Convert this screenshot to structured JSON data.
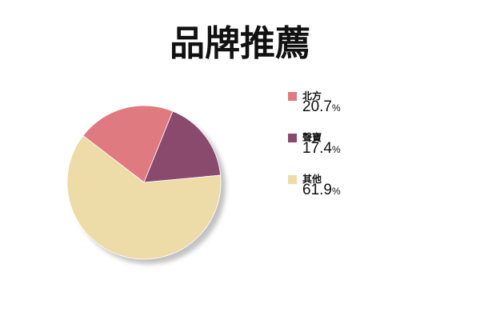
{
  "chart_data": {
    "type": "pie",
    "title": "品牌推薦",
    "slices": [
      {
        "label": "北方",
        "value": 20.7,
        "display": "20.7",
        "color": "#df7a80"
      },
      {
        "label": "聲寶",
        "value": 17.4,
        "display": "17.4",
        "color": "#8a4a6e"
      },
      {
        "label": "其他",
        "value": 61.9,
        "display": "61.9",
        "color": "#eddca8"
      }
    ],
    "unit": "%",
    "legend": "right"
  }
}
